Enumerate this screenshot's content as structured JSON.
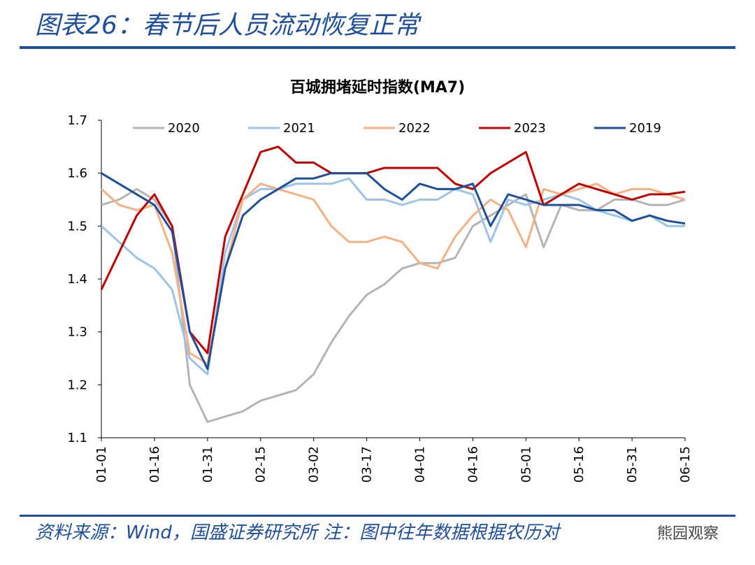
{
  "header": {
    "title": "图表26：春节后人员流动恢复正常"
  },
  "footer": {
    "source": "资料来源：Wind，国盛证券研究所 注：图中往年数据根据农历对",
    "watermark": "熊园观察"
  },
  "chart_data": {
    "type": "line",
    "title": "百城拥堵延时指数(MA7)",
    "categories": [
      "01-01",
      null,
      null,
      "01-16",
      null,
      null,
      "01-31",
      null,
      null,
      "02-15",
      null,
      null,
      "03-02",
      null,
      null,
      "03-17",
      null,
      null,
      "04-01",
      null,
      null,
      "04-16",
      null,
      null,
      "05-01",
      null,
      null,
      "05-16",
      null,
      null,
      "05-31",
      null,
      null,
      "06-15"
    ],
    "ylim": [
      1.1,
      1.7
    ],
    "yticks": [
      1.1,
      1.2,
      1.3,
      1.4,
      1.5,
      1.6,
      1.7
    ],
    "grid": false,
    "legend": "top",
    "series": [
      {
        "name": "2020",
        "color": "#b4b4b4",
        "values": [
          1.54,
          1.55,
          1.57,
          1.55,
          1.5,
          1.2,
          1.13,
          1.14,
          1.15,
          1.17,
          1.18,
          1.19,
          1.22,
          1.28,
          1.33,
          1.37,
          1.39,
          1.42,
          1.43,
          1.43,
          1.44,
          1.5,
          1.52,
          1.54,
          1.56,
          1.46,
          1.54,
          1.53,
          1.53,
          1.55,
          1.55,
          1.54,
          1.54,
          1.55
        ]
      },
      {
        "name": "2021",
        "color": "#9dc3e6",
        "values": [
          1.5,
          1.47,
          1.44,
          1.42,
          1.38,
          1.25,
          1.22,
          1.45,
          1.55,
          1.57,
          1.57,
          1.58,
          1.58,
          1.58,
          1.59,
          1.55,
          1.55,
          1.54,
          1.55,
          1.55,
          1.57,
          1.56,
          1.47,
          1.55,
          1.54,
          1.55,
          1.56,
          1.55,
          1.53,
          1.52,
          1.51,
          1.52,
          1.5,
          1.5
        ]
      },
      {
        "name": "2022",
        "color": "#f4b183",
        "values": [
          1.57,
          1.54,
          1.53,
          1.54,
          1.45,
          1.26,
          1.24,
          1.42,
          1.55,
          1.58,
          1.57,
          1.56,
          1.55,
          1.5,
          1.47,
          1.47,
          1.48,
          1.47,
          1.43,
          1.42,
          1.48,
          1.52,
          1.55,
          1.53,
          1.46,
          1.57,
          1.56,
          1.57,
          1.58,
          1.56,
          1.57,
          1.57,
          1.56,
          1.55
        ]
      },
      {
        "name": "2023",
        "color": "#c00000",
        "values": [
          1.38,
          1.45,
          1.52,
          1.56,
          1.5,
          1.3,
          1.26,
          1.48,
          1.56,
          1.64,
          1.65,
          1.62,
          1.62,
          1.6,
          1.6,
          1.6,
          1.61,
          1.61,
          1.61,
          1.61,
          1.58,
          1.57,
          1.6,
          1.62,
          1.64,
          1.54,
          1.56,
          1.58,
          1.57,
          1.56,
          1.55,
          1.56,
          1.56,
          1.565
        ]
      },
      {
        "name": "2019",
        "color": "#1f4e9a",
        "values": [
          1.6,
          1.58,
          1.56,
          1.54,
          1.49,
          1.3,
          1.23,
          1.42,
          1.52,
          1.55,
          1.57,
          1.59,
          1.59,
          1.6,
          1.6,
          1.6,
          1.57,
          1.55,
          1.58,
          1.57,
          1.57,
          1.58,
          1.5,
          1.56,
          1.55,
          1.54,
          1.54,
          1.54,
          1.53,
          1.53,
          1.51,
          1.52,
          1.51,
          1.505
        ]
      }
    ]
  }
}
